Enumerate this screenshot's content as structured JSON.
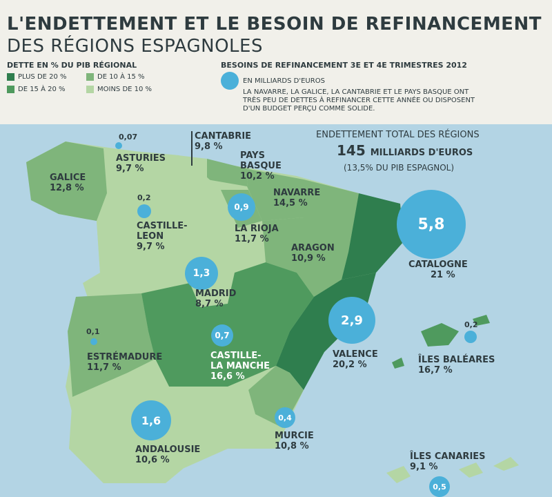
{
  "title": {
    "line1": "L'ENDETTEMENT ET LE BESOIN DE REFINANCEMENT",
    "line2": "DES RÉGIONS ESPAGNOLES"
  },
  "legend": {
    "title": "DETTE EN % DU PIB RÉGIONAL",
    "items": [
      {
        "label": "PLUS DE 20 %",
        "color": "#2f7e4e"
      },
      {
        "label": "DE 10 À 15 %",
        "color": "#7fb57b"
      },
      {
        "label": "DE 15 À 20 %",
        "color": "#4f9a5e"
      },
      {
        "label": "MOINS DE 10 %",
        "color": "#b4d6a4"
      }
    ]
  },
  "refinancing": {
    "title": "BESOINS DE REFINANCEMENT 3E ET 4E TRIMESTRES 2012",
    "unit": "EN MILLIARDS D'EUROS",
    "note": "LA NAVARRE, LA GALICE, LA CANTABRIE ET LE PAYS BASQUE ONT TRÈS PEU DE DETTES À REFINANCER CETTE ANNÉE OU DISPOSENT D'UN BUDGET PERÇU COMME SOLIDE."
  },
  "total": {
    "title": "ENDETTEMENT TOTAL DES RÉGIONS",
    "value": "145",
    "unit": "MILLIARDS D'EUROS",
    "pct": "(13,5% DU PIB ESPAGNOL)"
  },
  "regions": {
    "galice": {
      "name": "GALICE",
      "debt": "12,8 %"
    },
    "asturies": {
      "name": "ASTURIES",
      "debt": "9,7 %",
      "refi": "0,07"
    },
    "cantabrie": {
      "name": "CANTABRIE",
      "debt": "9,8 %"
    },
    "paysbasque": {
      "name1": "PAYS",
      "name2": "BASQUE",
      "debt": "10,2 %"
    },
    "navarre": {
      "name": "NAVARRE",
      "debt": "14,5 %"
    },
    "castilleleon": {
      "name1": "CASTILLE-",
      "name2": "LEON",
      "debt": "9,7 %",
      "refi": "0,2"
    },
    "larioja": {
      "name": "LA RIOJA",
      "debt": "11,7 %",
      "refi": "0,9"
    },
    "aragon": {
      "name": "ARAGON",
      "debt": "10,9 %"
    },
    "catalogne": {
      "name": "CATALOGNE",
      "debt": "21 %",
      "refi": "5,8"
    },
    "madrid": {
      "name": "MADRID",
      "debt": "8,7 %",
      "refi": "1,3"
    },
    "valence": {
      "name": "VALENCE",
      "debt": "20,2 %",
      "refi": "2,9"
    },
    "castillelamanche": {
      "name1": "CASTILLE-",
      "name2": "LA MANCHE",
      "debt": "16,6 %",
      "refi": "0,7"
    },
    "estremadure": {
      "name": "ESTRÉMADURE",
      "debt": "11,7 %",
      "refi": "0,1"
    },
    "baleares": {
      "name": "ÎLES BALÉARES",
      "debt": "16,7 %",
      "refi": "0,2"
    },
    "andalousie": {
      "name": "ANDALOUSIE",
      "debt": "10,6 %",
      "refi": "1,6"
    },
    "murcie": {
      "name": "MURCIE",
      "debt": "10,8 %",
      "refi": "0,4"
    },
    "canaries": {
      "name": "ÎLES CANARIES",
      "debt": "9,1 %",
      "refi": "0,5"
    }
  }
}
